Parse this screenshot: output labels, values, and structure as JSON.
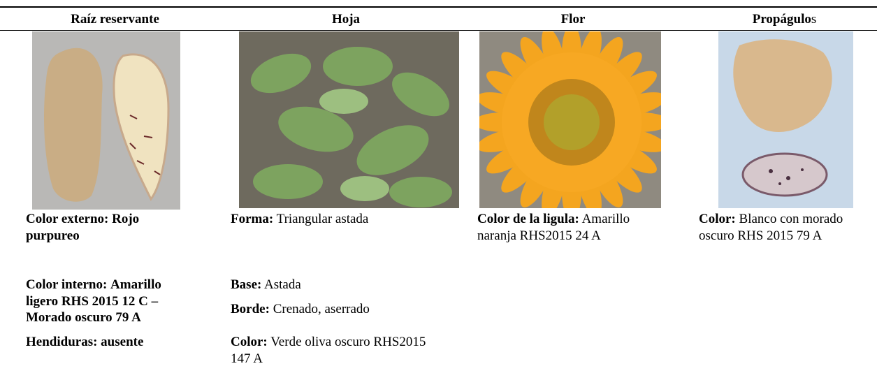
{
  "table": {
    "headers": [
      {
        "parts": [
          "Raíz reservante"
        ]
      },
      {
        "parts": [
          "Hoja"
        ]
      },
      {
        "parts": [
          "Flor"
        ]
      },
      {
        "parts": [
          "Propágulo",
          "s"
        ]
      }
    ],
    "columns": [
      [
        {
          "label": "Color externo:",
          "text": "Rojo purpureo"
        },
        {
          "label": "Color interno:",
          "text": "Amarillo ligero RHS 2015 12 C – Morado oscuro 79 A"
        },
        {
          "label": "Hendiduras:",
          "text": "ausente"
        }
      ],
      [
        {
          "label": "Forma:",
          "text": "Triangular astada"
        },
        {
          "label": "Base:",
          "text": "Astada"
        },
        {
          "label": "Borde:",
          "text": "Crenado, aserrado"
        },
        {
          "label": "Color:",
          "text": "Verde oliva oscuro RHS2015 147 A"
        }
      ],
      [
        {
          "label": "Color de la ligula:",
          "text": "Amarillo naranja RHS2015 24 A"
        }
      ],
      [
        {
          "label": "Color:",
          "text": "Blanco con morado oscuro RHS 2015 79 A"
        }
      ]
    ]
  }
}
